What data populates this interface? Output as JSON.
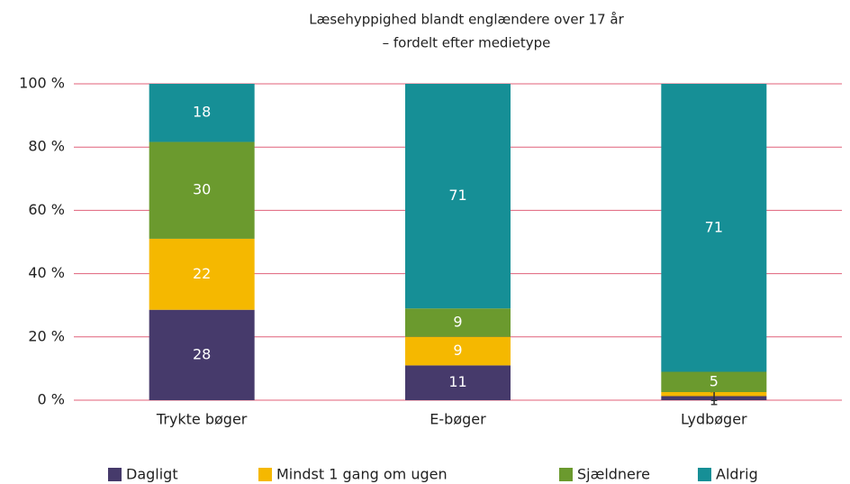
{
  "chart_data": {
    "type": "bar",
    "stacking": "percent",
    "title": "Læsehyppighed blandt englændere over 17 år",
    "subtitle": "– fordelt efter medietype",
    "categories": [
      "Trykte bøger",
      "E-bøger",
      "Lydbøger"
    ],
    "series": [
      {
        "name": "Dagligt",
        "color": "#463a6b",
        "values": [
          28,
          11,
          1
        ]
      },
      {
        "name": "Mindst 1 gang om ugen",
        "color": "#f5b800",
        "values": [
          22,
          9,
          1
        ]
      },
      {
        "name": "Sjældnere",
        "color": "#6b9a2e",
        "values": [
          30,
          9,
          5
        ]
      },
      {
        "name": "Aldrig",
        "color": "#168f96",
        "values": [
          18,
          71,
          71
        ]
      }
    ],
    "ylim": [
      0,
      100
    ],
    "yticks": [
      {
        "value": 0,
        "label": "0 %"
      },
      {
        "value": 20,
        "label": "20 %"
      },
      {
        "value": 40,
        "label": "40 %"
      },
      {
        "value": 60,
        "label": "60 %"
      },
      {
        "value": 80,
        "label": "80 %"
      },
      {
        "value": 100,
        "label": "100 %"
      }
    ],
    "grid": true,
    "grid_color": "#e0607a",
    "legend": "bottom"
  }
}
